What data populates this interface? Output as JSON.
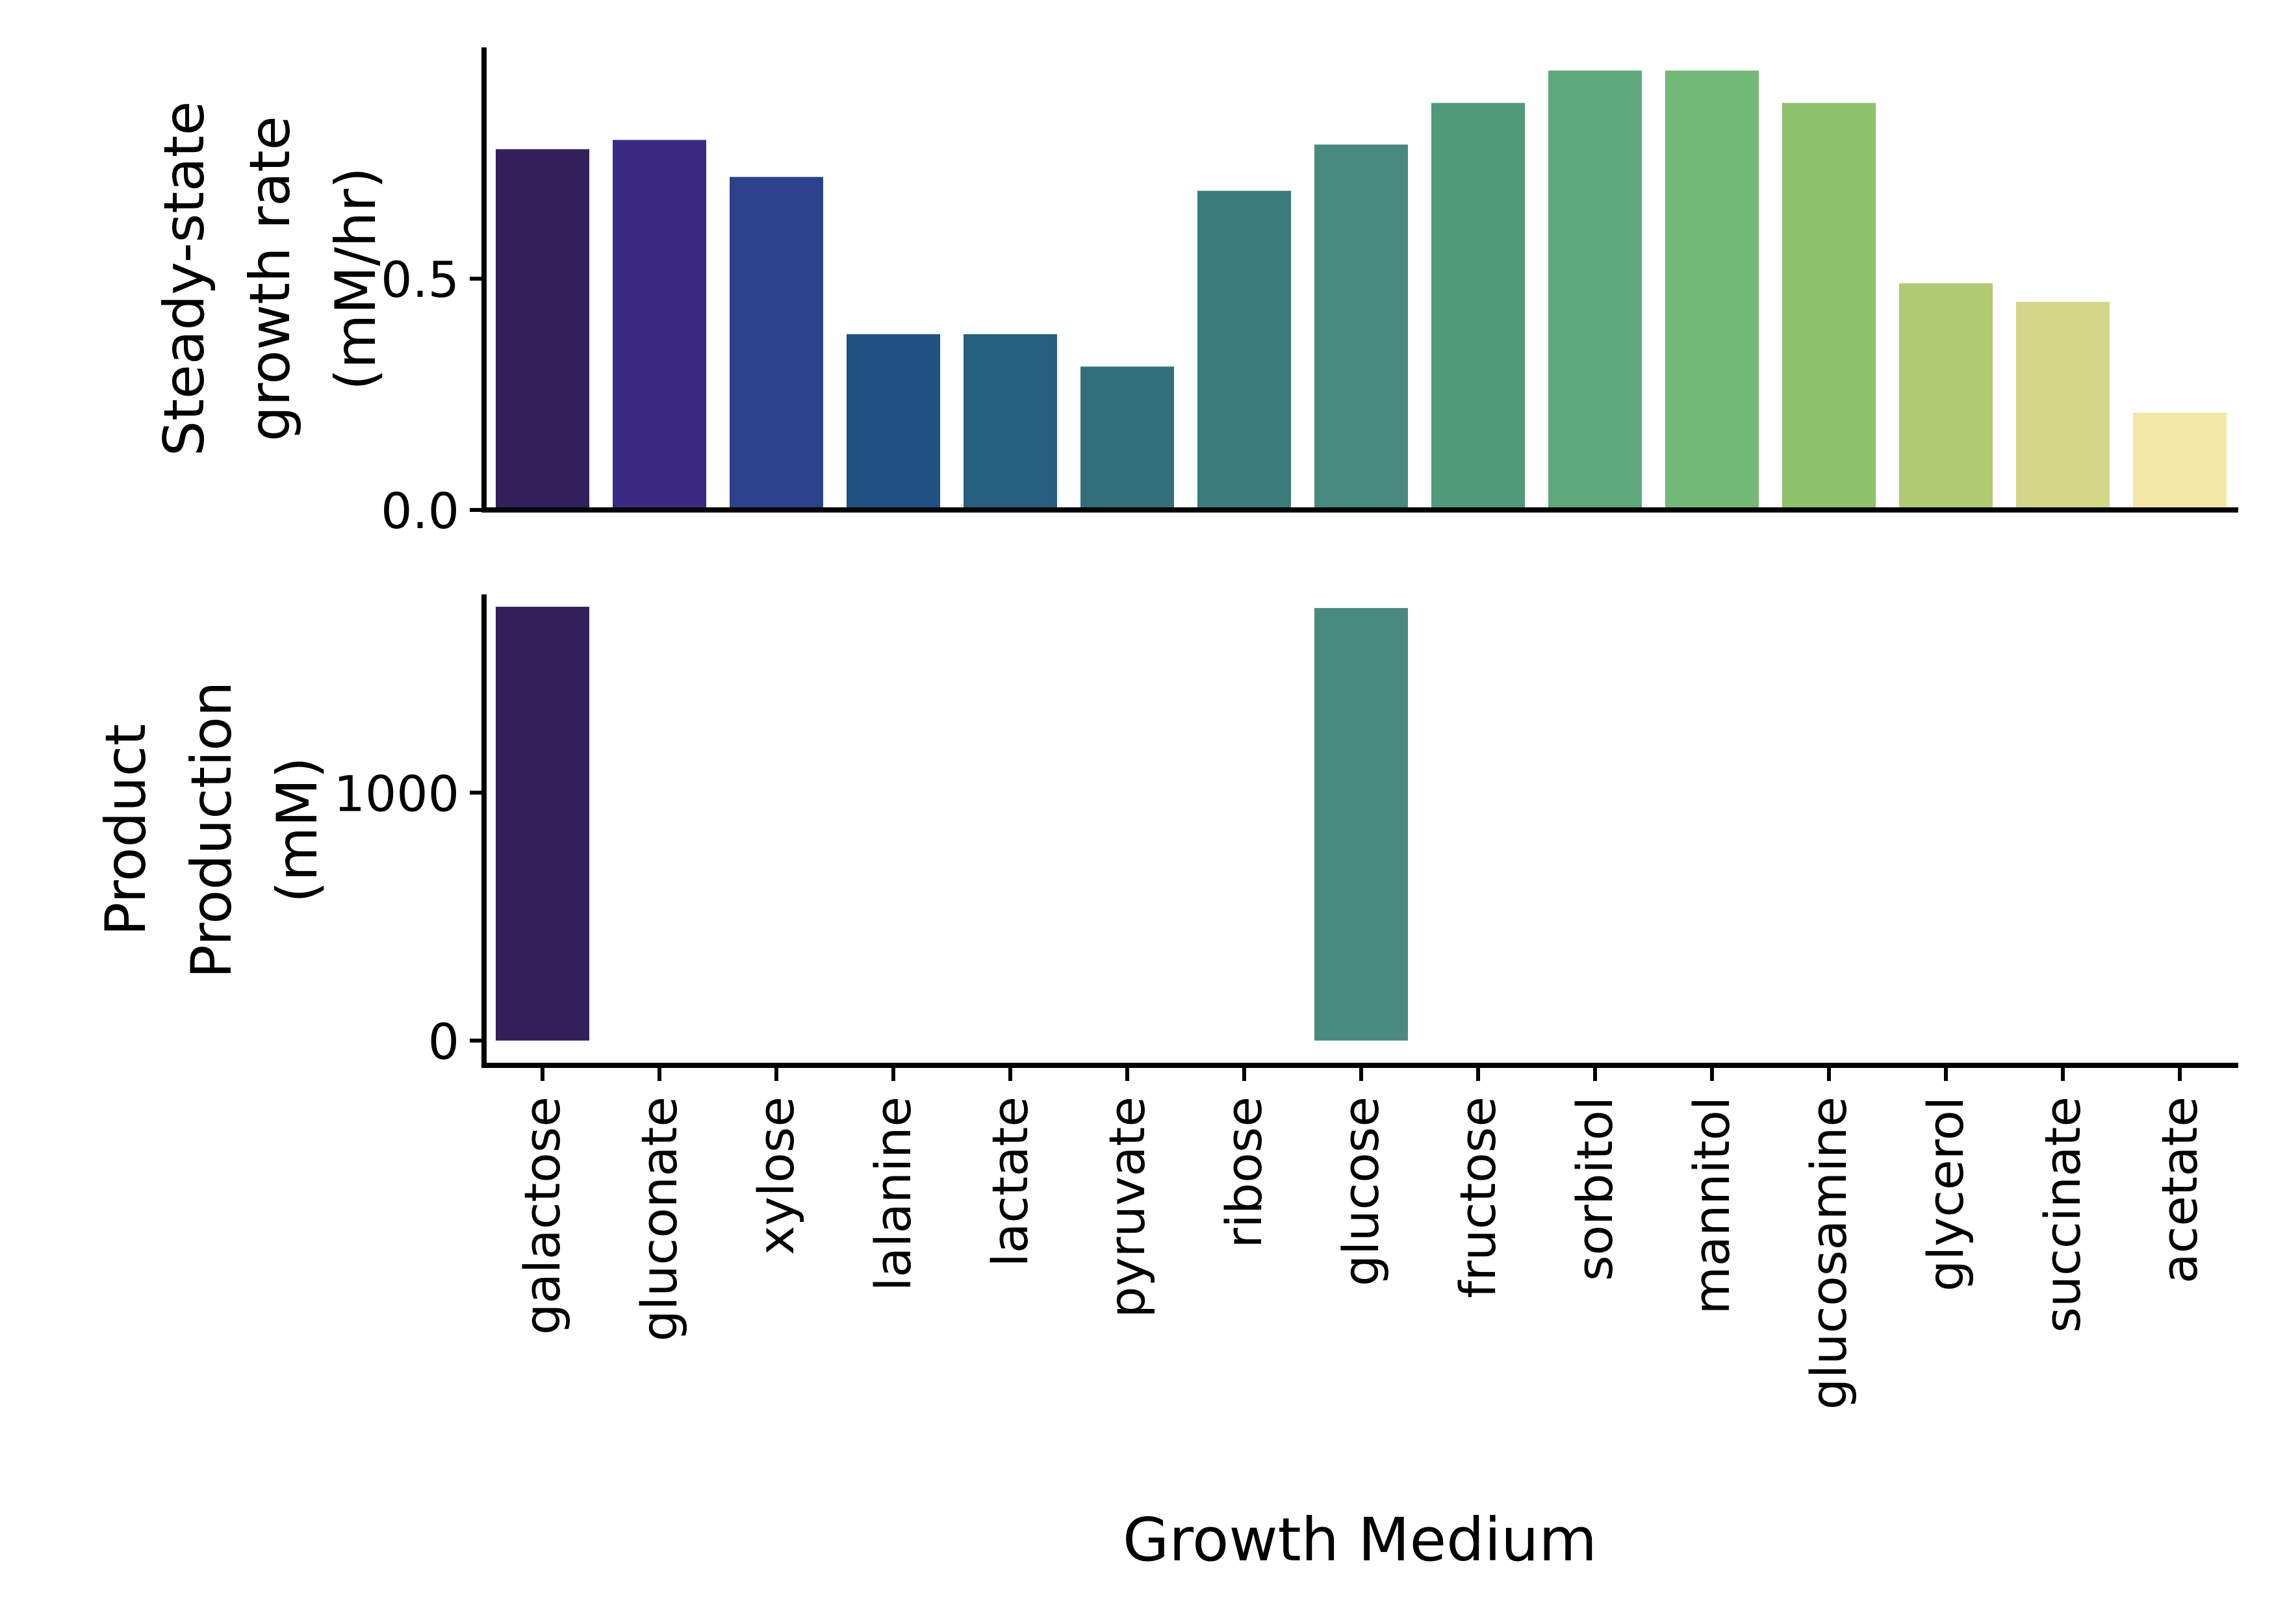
{
  "xlabel": "Growth Medium",
  "chart_data": [
    {
      "type": "bar",
      "ylabel_lines": [
        "Steady-state",
        "growth rate",
        "(mM/hr)"
      ],
      "ylim": [
        0,
        1.0
      ],
      "yticks": [
        0.0,
        0.5
      ],
      "ytick_labels": [
        "0.0",
        "0.5"
      ],
      "categories": [
        "galactose",
        "gluconate",
        "xylose",
        "lalanine",
        "lactate",
        "pyruvate",
        "ribose",
        "glucose",
        "fructose",
        "sorbitol",
        "mannitol",
        "glucosamine",
        "glycerol",
        "succinate",
        "acetate"
      ],
      "values": [
        0.78,
        0.8,
        0.72,
        0.38,
        0.38,
        0.31,
        0.69,
        0.79,
        0.88,
        0.95,
        0.95,
        0.88,
        0.49,
        0.45,
        0.21
      ]
    },
    {
      "type": "bar",
      "ylabel_lines": [
        "Product",
        "Production",
        "(mM)"
      ],
      "ylim": [
        -100,
        1800
      ],
      "yticks": [
        0,
        1000
      ],
      "ytick_labels": [
        "0",
        "1000"
      ],
      "categories": [
        "galactose",
        "gluconate",
        "xylose",
        "lalanine",
        "lactate",
        "pyruvate",
        "ribose",
        "glucose",
        "fructose",
        "sorbitol",
        "mannitol",
        "glucosamine",
        "glycerol",
        "succinate",
        "acetate"
      ],
      "values": [
        1750,
        0,
        0,
        0,
        0,
        0,
        0,
        1745,
        0,
        0,
        0,
        0,
        0,
        0,
        0
      ]
    }
  ],
  "colors": [
    "#32205c",
    "#3b2a84",
    "#2c438b",
    "#1f5182",
    "#275f7e",
    "#326f7a",
    "#3b7b79",
    "#488a7e",
    "#509a7c",
    "#5fa97c",
    "#72b978",
    "#8dc26b",
    "#b1cb71",
    "#d3d786",
    "#f3e7a5"
  ]
}
